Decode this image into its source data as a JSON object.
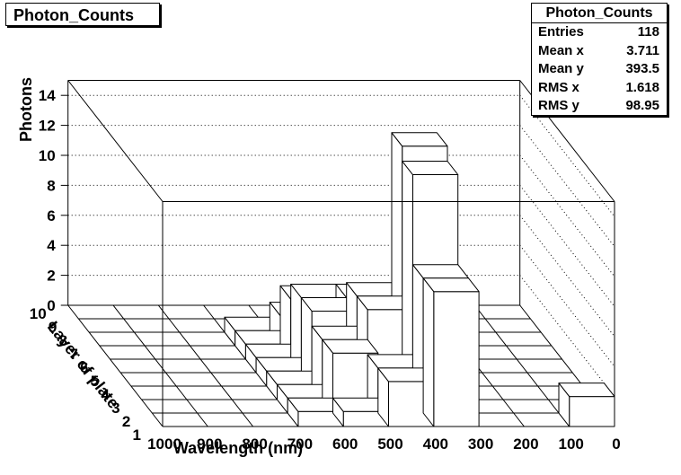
{
  "title": "Photon_Counts",
  "stats": {
    "title": "Photon_Counts",
    "rows": [
      {
        "label": "Entries",
        "value": "118"
      },
      {
        "label": "Mean x",
        "value": "3.711"
      },
      {
        "label": "Mean y",
        "value": "393.5"
      },
      {
        "label": "RMS x",
        "value": "1.618"
      },
      {
        "label": "RMS y",
        "value": "98.95"
      }
    ]
  },
  "chart_data": {
    "type": "lego3d",
    "title": "",
    "xlabel": "Wavelength (nm)",
    "ylabel": "Layer of plate",
    "zlabel": "Photons",
    "x_ticks": [
      "1000",
      "900",
      "800",
      "700",
      "600",
      "500",
      "400",
      "300",
      "200",
      "100",
      "0"
    ],
    "y_ticks": [
      "1",
      "2",
      "3",
      "4",
      "5",
      "6",
      "7",
      "8",
      "9",
      "10"
    ],
    "z_ticks": [
      "0",
      "2",
      "4",
      "6",
      "8",
      "10",
      "12",
      "14"
    ],
    "zlim": [
      0,
      15
    ],
    "wavelength_bin_centers": [
      950,
      850,
      750,
      650,
      550,
      450,
      350,
      250,
      150,
      50
    ],
    "layer_bin_centers": [
      1.5,
      2.5,
      3.5,
      4.5,
      5.5,
      6.5,
      7.5,
      8.5,
      9.5
    ],
    "grid": true,
    "bars": [
      {
        "layer": 1.5,
        "wavelength": 650,
        "photons": 1
      },
      {
        "layer": 1.5,
        "wavelength": 550,
        "photons": 1
      },
      {
        "layer": 1.5,
        "wavelength": 450,
        "photons": 3
      },
      {
        "layer": 1.5,
        "wavelength": 350,
        "photons": 9
      },
      {
        "layer": 2.5,
        "wavelength": 650,
        "photons": 1
      },
      {
        "layer": 2.5,
        "wavelength": 550,
        "photons": 4
      },
      {
        "layer": 2.5,
        "wavelength": 450,
        "photons": 3
      },
      {
        "layer": 2.5,
        "wavelength": 350,
        "photons": 9
      },
      {
        "layer": 3.5,
        "wavelength": 650,
        "photons": 1
      },
      {
        "layer": 3.5,
        "wavelength": 550,
        "photons": 4
      },
      {
        "layer": 3.5,
        "wavelength": 450,
        "photons": 6
      },
      {
        "layer": 3.5,
        "wavelength": 350,
        "photons": 15
      },
      {
        "layer": 4.5,
        "wavelength": 650,
        "photons": 1
      },
      {
        "layer": 4.5,
        "wavelength": 550,
        "photons": 5
      },
      {
        "layer": 4.5,
        "wavelength": 450,
        "photons": 6
      },
      {
        "layer": 4.5,
        "wavelength": 350,
        "photons": 16
      },
      {
        "layer": 5.5,
        "wavelength": 650,
        "photons": 1
      },
      {
        "layer": 5.5,
        "wavelength": 550,
        "photons": 5
      },
      {
        "layer": 5.5,
        "wavelength": 450,
        "photons": 5
      },
      {
        "layer": 6.5,
        "wavelength": 650,
        "photons": 1
      },
      {
        "layer": 6.5,
        "wavelength": 550,
        "photons": 4
      },
      {
        "layer": 6.5,
        "wavelength": 450,
        "photons": 2
      },
      {
        "layer": 7.5,
        "wavelength": 650,
        "photons": 1
      },
      {
        "layer": 7.5,
        "wavelength": 550,
        "photons": 2
      },
      {
        "layer": 1.5,
        "wavelength": 50,
        "photons": 2
      }
    ]
  },
  "colors": {
    "background": "#ffffff",
    "lines": "#000000",
    "bar_fill": "#ffffff"
  }
}
